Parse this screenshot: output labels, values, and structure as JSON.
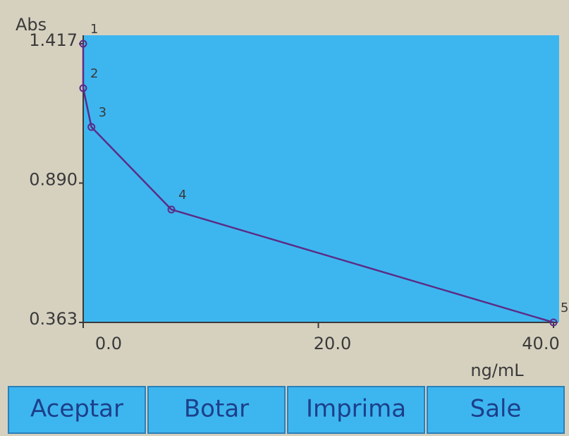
{
  "chart_data": {
    "type": "line",
    "y_label": "Abs",
    "x_label": "ng/mL",
    "x": [
      0,
      0,
      0.7,
      7.5,
      40
    ],
    "series": [
      {
        "name": null,
        "color": "#5b2d86",
        "values": [
          1.417,
          1.249,
          1.102,
          0.79,
          0.363
        ]
      }
    ],
    "point_labels": [
      "1",
      "2",
      "3",
      "4",
      "5"
    ],
    "xlim": [
      0,
      40
    ],
    "xticks": [
      {
        "value": 0,
        "label": "0.0"
      },
      {
        "value": 20,
        "label": "20.0"
      },
      {
        "value": 40,
        "label": "40.0"
      }
    ],
    "ylim": [
      0.363,
      1.417
    ],
    "yticks": [
      0.363,
      {
        "value": 0.89,
        "label": "0.890"
      },
      1.417
    ],
    "plot_color": "#3db6f0"
  },
  "buttons": [
    "Aceptar",
    "Botar",
    "Imprima",
    "Sale"
  ]
}
